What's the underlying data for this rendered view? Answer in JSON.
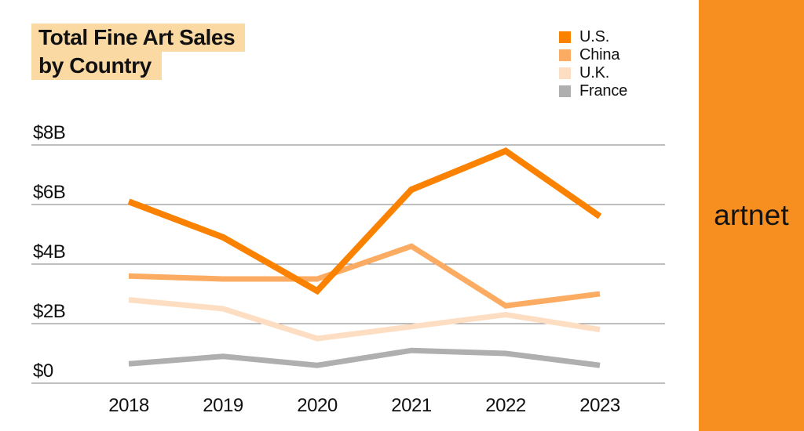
{
  "title": {
    "line1": "Total Fine Art Sales",
    "line2": "by Country",
    "highlight_color": "#FBD9A3",
    "text_color": "#111111"
  },
  "brand": {
    "name": "artnet",
    "panel_color": "#F78E20",
    "text_color": "#131313"
  },
  "chart_data": {
    "type": "line",
    "title": "Total Fine Art Sales by Country",
    "x": [
      "2018",
      "2019",
      "2020",
      "2021",
      "2022",
      "2023"
    ],
    "xlabel": "",
    "ylabel": "",
    "unit": "USD billions",
    "yticks": [
      {
        "label": "$8B",
        "value": 8
      },
      {
        "label": "$6B",
        "value": 6
      },
      {
        "label": "$4B",
        "value": 4
      },
      {
        "label": "$2B",
        "value": 2
      },
      {
        "label": "$0",
        "value": 0
      }
    ],
    "ylim": [
      0,
      8.7
    ],
    "grid": true,
    "gridline_color": "#7d7d7d",
    "legend_position": "top-right",
    "series": [
      {
        "name": "U.S.",
        "color": "#FA8200",
        "values": [
          6.1,
          4.9,
          3.1,
          6.5,
          7.8,
          5.6
        ]
      },
      {
        "name": "China",
        "color": "#FBAC62",
        "values": [
          3.6,
          3.5,
          3.5,
          4.6,
          2.6,
          3.0
        ]
      },
      {
        "name": "U.K.",
        "color": "#FDDEC2",
        "values": [
          2.8,
          2.5,
          1.5,
          1.9,
          2.3,
          1.8
        ]
      },
      {
        "name": "France",
        "color": "#AFAFAF",
        "values": [
          0.65,
          0.9,
          0.6,
          1.1,
          1.0,
          0.6
        ]
      }
    ]
  }
}
